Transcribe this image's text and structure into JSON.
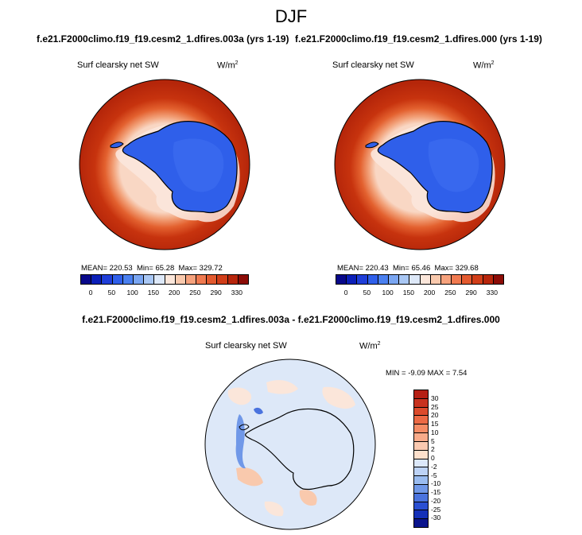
{
  "season": "DJF",
  "panels": [
    {
      "case": "f.e21.F2000climo.f19_f19.cesm2_1.dfires.003a (yrs 1-19)",
      "variable": "Surf clearsky net SW",
      "units": "W/m",
      "units_exp": "2",
      "mean_text": "MEAN= 220.53",
      "min_text": "Min= 65.28",
      "max_text": "Max= 329.72"
    },
    {
      "case": "f.e21.F2000climo.f19_f19.cesm2_1.dfires.000 (yrs 1-19)",
      "variable": "Surf clearsky net SW",
      "units": "W/m",
      "units_exp": "2",
      "mean_text": "MEAN= 220.43",
      "min_text": "Min= 65.46",
      "max_text": "Max= 329.68"
    }
  ],
  "abs_colorbar": {
    "colors": [
      "#08088a",
      "#0b1fb8",
      "#1f3ed8",
      "#2f5fea",
      "#4a80f0",
      "#7aa6f2",
      "#a9c7f4",
      "#dde8f8",
      "#fbe6da",
      "#f9c9ad",
      "#f6a27d",
      "#f07a50",
      "#e35a2f",
      "#d13e19",
      "#b8260c",
      "#8c0c07"
    ],
    "ticks": [
      "0",
      "50",
      "100",
      "150",
      "200",
      "250",
      "290",
      "330"
    ]
  },
  "diff": {
    "title": "f.e21.F2000climo.f19_f19.cesm2_1.dfires.003a - f.e21.F2000climo.f19_f19.cesm2_1.dfires.000",
    "variable": "Surf clearsky net SW",
    "units": "W/m",
    "units_exp": "2",
    "minmax_text": "MIN =  -9.09 MAX =   7.54",
    "colorbar": {
      "colors_top_to_bottom": [
        "#b51f14",
        "#c8321f",
        "#dc4b2c",
        "#ec6a45",
        "#f58c65",
        "#f8ab8a",
        "#fbc9b0",
        "#fde0cc",
        "#dce8fa",
        "#bdd3f6",
        "#9abcf0",
        "#7098e8",
        "#4a73de",
        "#2a4fd2",
        "#1430b8",
        "#0a148c"
      ],
      "ticks": [
        "30",
        "25",
        "20",
        "15",
        "10",
        "5",
        "2",
        "0",
        "-2",
        "-5",
        "-10",
        "-15",
        "-20",
        "-25",
        "-30"
      ]
    }
  }
}
